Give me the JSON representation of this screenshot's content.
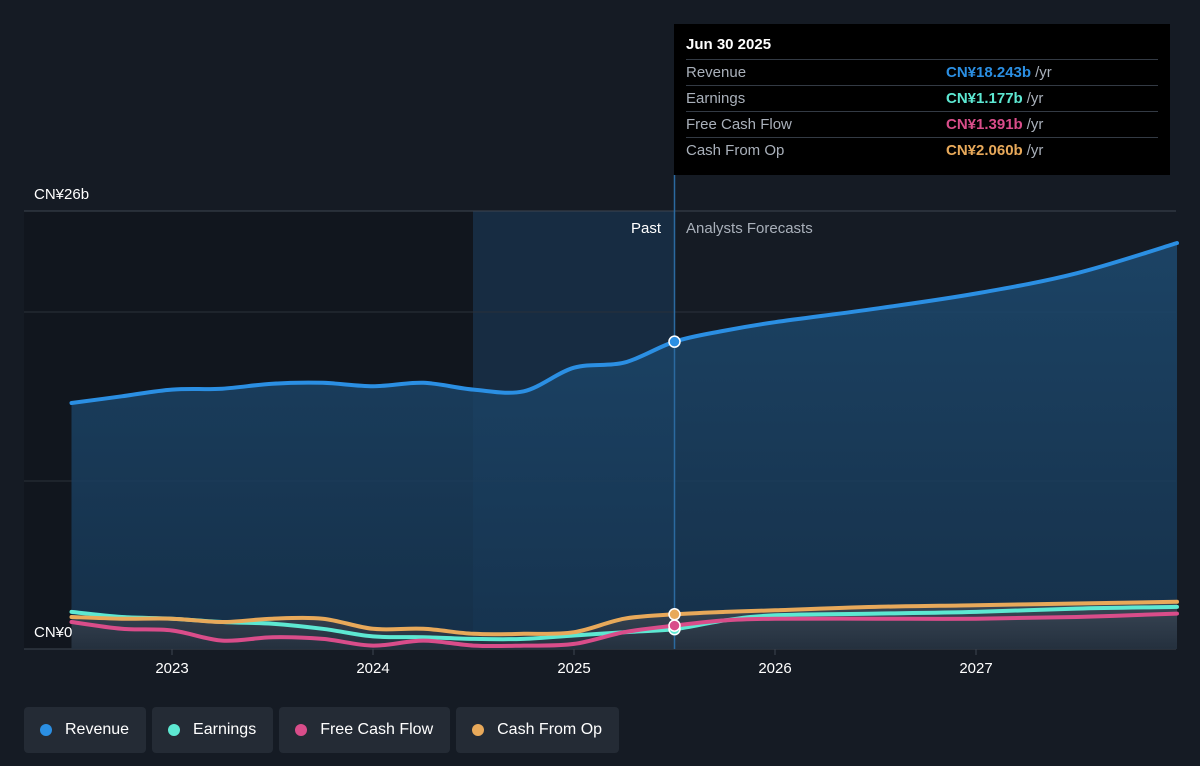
{
  "tooltip": {
    "date": "Jun 30 2025",
    "rows": [
      {
        "label": "Revenue",
        "value": "CN¥18.243b",
        "unit": "/yr",
        "color": "#2b8fe3"
      },
      {
        "label": "Earnings",
        "value": "CN¥1.177b",
        "unit": "/yr",
        "color": "#5de8d2"
      },
      {
        "label": "Free Cash Flow",
        "value": "CN¥1.391b",
        "unit": "/yr",
        "color": "#d94d8a"
      },
      {
        "label": "Cash From Op",
        "value": "CN¥2.060b",
        "unit": "/yr",
        "color": "#e8a95a"
      }
    ]
  },
  "chart_data": {
    "type": "area",
    "y_tick_labels": [
      "CN¥26b",
      "CN¥0"
    ],
    "ylim": [
      0,
      26
    ],
    "x_tick_labels": [
      "2023",
      "2024",
      "2025",
      "2026",
      "2027"
    ],
    "region_labels": {
      "past": "Past",
      "forecast": "Analysts Forecasts"
    },
    "series": [
      {
        "name": "Revenue",
        "color": "#2b8fe3",
        "points": [
          [
            2022.5,
            14.6
          ],
          [
            2022.75,
            15.0
          ],
          [
            2023.0,
            15.4
          ],
          [
            2023.25,
            15.45
          ],
          [
            2023.5,
            15.75
          ],
          [
            2023.75,
            15.8
          ],
          [
            2024.0,
            15.6
          ],
          [
            2024.25,
            15.8
          ],
          [
            2024.5,
            15.4
          ],
          [
            2024.75,
            15.3
          ],
          [
            2025.0,
            16.7
          ],
          [
            2025.25,
            17.0
          ],
          [
            2025.5,
            18.243
          ],
          [
            2025.75,
            18.9
          ],
          [
            2026.0,
            19.4
          ],
          [
            2026.5,
            20.2
          ],
          [
            2027.0,
            21.1
          ],
          [
            2027.5,
            22.3
          ],
          [
            2028.0,
            24.1
          ]
        ]
      },
      {
        "name": "Earnings",
        "color": "#5de8d2",
        "points": [
          [
            2022.5,
            2.2
          ],
          [
            2022.75,
            1.9
          ],
          [
            2023.0,
            1.8
          ],
          [
            2023.25,
            1.6
          ],
          [
            2023.5,
            1.5
          ],
          [
            2023.75,
            1.2
          ],
          [
            2024.0,
            0.75
          ],
          [
            2024.25,
            0.7
          ],
          [
            2024.5,
            0.6
          ],
          [
            2024.75,
            0.6
          ],
          [
            2025.0,
            0.8
          ],
          [
            2025.25,
            1.0
          ],
          [
            2025.5,
            1.177
          ],
          [
            2025.75,
            1.7
          ],
          [
            2026.0,
            2.0
          ],
          [
            2026.5,
            2.1
          ],
          [
            2027.0,
            2.2
          ],
          [
            2027.5,
            2.4
          ],
          [
            2028.0,
            2.5
          ]
        ]
      },
      {
        "name": "Free Cash Flow",
        "color": "#d94d8a",
        "points": [
          [
            2022.5,
            1.6
          ],
          [
            2022.75,
            1.2
          ],
          [
            2023.0,
            1.1
          ],
          [
            2023.25,
            0.5
          ],
          [
            2023.5,
            0.7
          ],
          [
            2023.75,
            0.6
          ],
          [
            2024.0,
            0.2
          ],
          [
            2024.25,
            0.5
          ],
          [
            2024.5,
            0.2
          ],
          [
            2024.75,
            0.2
          ],
          [
            2025.0,
            0.3
          ],
          [
            2025.25,
            1.0
          ],
          [
            2025.5,
            1.391
          ],
          [
            2025.75,
            1.7
          ],
          [
            2026.0,
            1.8
          ],
          [
            2026.5,
            1.8
          ],
          [
            2027.0,
            1.8
          ],
          [
            2027.5,
            1.9
          ],
          [
            2028.0,
            2.1
          ]
        ]
      },
      {
        "name": "Cash From Op",
        "color": "#e8a95a",
        "points": [
          [
            2022.5,
            1.9
          ],
          [
            2022.75,
            1.8
          ],
          [
            2023.0,
            1.8
          ],
          [
            2023.25,
            1.6
          ],
          [
            2023.5,
            1.8
          ],
          [
            2023.75,
            1.8
          ],
          [
            2024.0,
            1.2
          ],
          [
            2024.25,
            1.2
          ],
          [
            2024.5,
            0.9
          ],
          [
            2024.75,
            0.9
          ],
          [
            2025.0,
            1.0
          ],
          [
            2025.25,
            1.8
          ],
          [
            2025.5,
            2.06
          ],
          [
            2025.75,
            2.2
          ],
          [
            2026.0,
            2.3
          ],
          [
            2026.5,
            2.5
          ],
          [
            2027.0,
            2.6
          ],
          [
            2027.5,
            2.7
          ],
          [
            2028.0,
            2.8
          ]
        ]
      }
    ],
    "highlight_date": 2025.5
  },
  "legend": [
    {
      "label": "Revenue",
      "color": "#2b8fe3"
    },
    {
      "label": "Earnings",
      "color": "#5de8d2"
    },
    {
      "label": "Free Cash Flow",
      "color": "#d94d8a"
    },
    {
      "label": "Cash From Op",
      "color": "#e8a95a"
    }
  ]
}
